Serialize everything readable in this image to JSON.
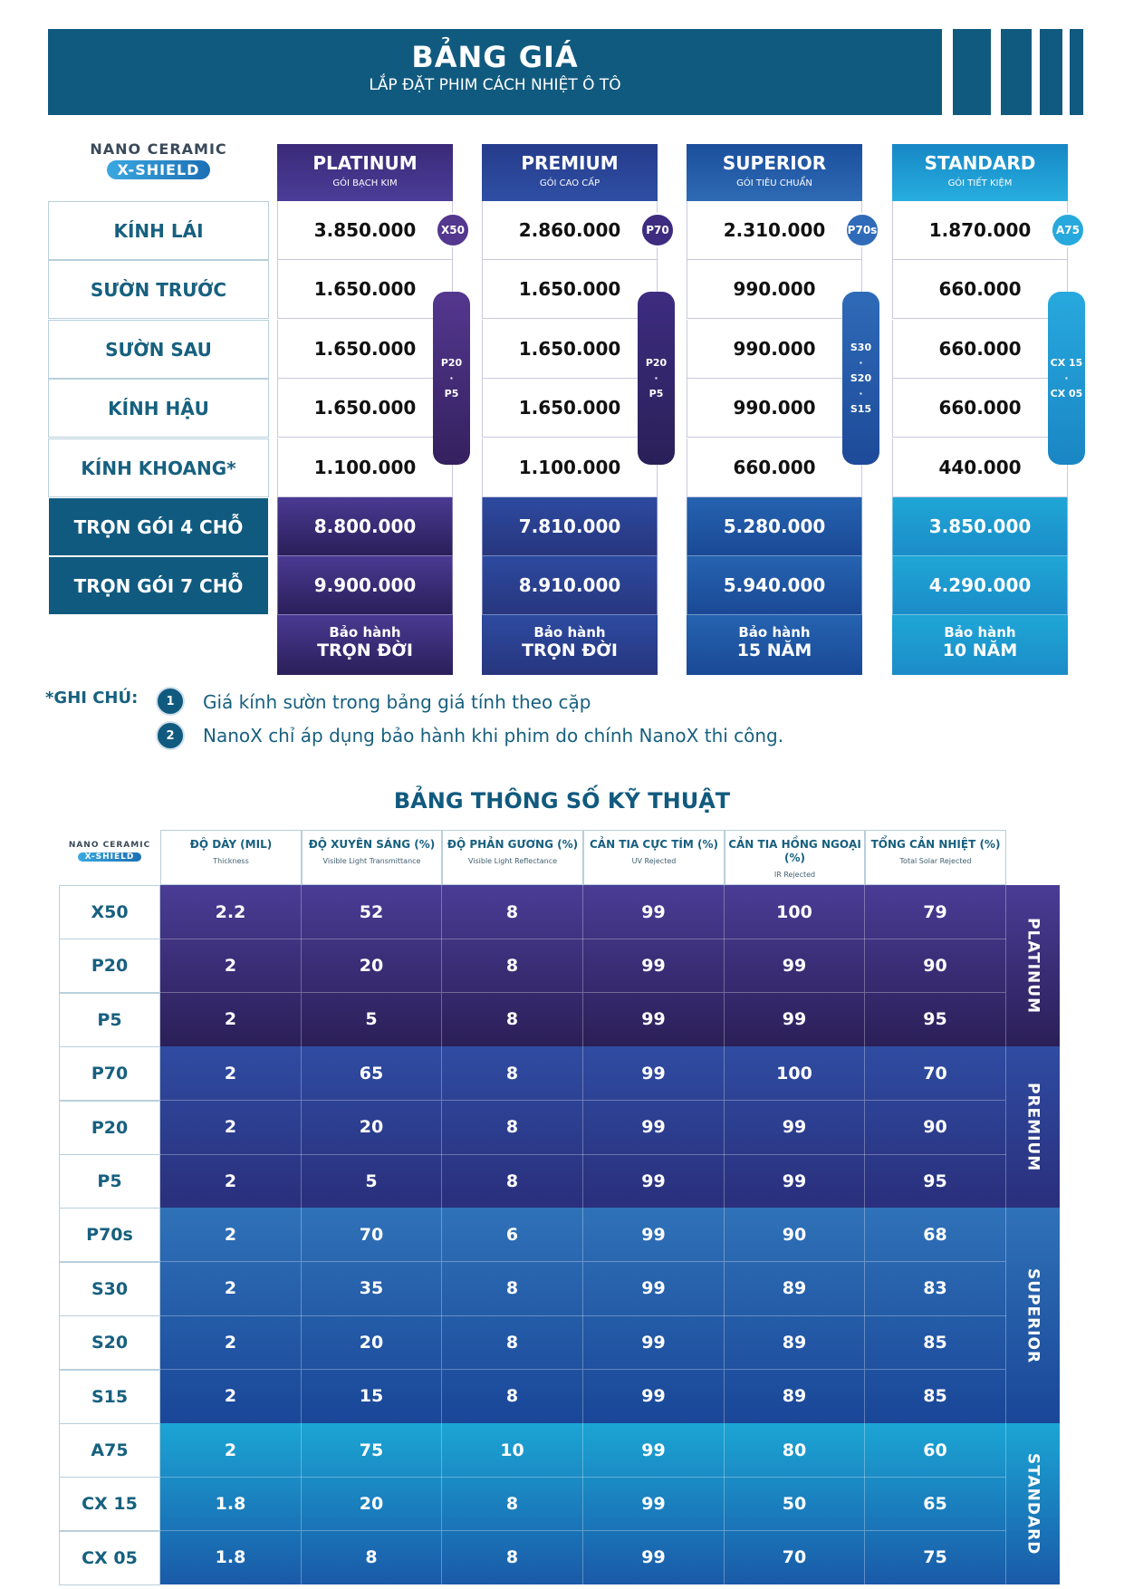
{
  "header": {
    "title": "BẢNG GIÁ",
    "subtitle": "LẮP ĐẶT PHIM CÁCH NHIỆT Ô TÔ"
  },
  "logo": {
    "line1": "NANO CERAMIC",
    "line2": "X-SHIELD"
  },
  "colors": {
    "platinum": "#3f2f86",
    "premium": "#2d4596",
    "superior": "#1f5ca9",
    "standard": "#1a9bd0",
    "brand": "#115a7f"
  },
  "price": {
    "rows": [
      "KÍNH LÁI",
      "SƯỜN TRƯỚC",
      "SƯỜN SAU",
      "KÍNH HẬU",
      "KÍNH KHOANG*",
      "TRỌN GÓI 4 CHỖ",
      "TRỌN GÓI 7 CHỖ"
    ],
    "packages": [
      {
        "name": "PLATINUM",
        "sub": "GÓI BẠCH KIM",
        "prices": [
          "3.850.000",
          "1.650.000",
          "1.650.000",
          "1.650.000",
          "1.100.000",
          "8.800.000",
          "9.900.000"
        ],
        "badge": "X50",
        "pill": [
          "P20",
          "·",
          "P5"
        ],
        "warranty_a": "Bảo hành",
        "warranty_b": "TRỌN ĐỜI"
      },
      {
        "name": "PREMIUM",
        "sub": "GÓI CAO CẤP",
        "prices": [
          "2.860.000",
          "1.650.000",
          "1.650.000",
          "1.650.000",
          "1.100.000",
          "7.810.000",
          "8.910.000"
        ],
        "badge": "P70",
        "pill": [
          "P20",
          "·",
          "P5"
        ],
        "warranty_a": "Bảo hành",
        "warranty_b": "TRỌN ĐỜI"
      },
      {
        "name": "SUPERIOR",
        "sub": "GÓI TIÊU CHUẨN",
        "prices": [
          "2.310.000",
          "990.000",
          "990.000",
          "990.000",
          "660.000",
          "5.280.000",
          "5.940.000"
        ],
        "badge": "P70s",
        "pill": [
          "S30",
          "·",
          "S20",
          "·",
          "S15"
        ],
        "warranty_a": "Bảo hành",
        "warranty_b": "15 NĂM"
      },
      {
        "name": "STANDARD",
        "sub": "GÓI TIẾT KIỆM",
        "prices": [
          "1.870.000",
          "660.000",
          "660.000",
          "660.000",
          "440.000",
          "3.850.000",
          "4.290.000"
        ],
        "badge": "A75",
        "pill": [
          "CX 15",
          "·",
          "CX 05"
        ],
        "warranty_a": "Bảo hành",
        "warranty_b": "10 NĂM"
      }
    ]
  },
  "notes": {
    "label": "*GHI CHÚ:",
    "items": [
      {
        "n": "1",
        "text": "Giá kính sườn trong bảng giá tính theo cặp"
      },
      {
        "n": "2",
        "text": "NanoX chỉ áp dụng bảo hành khi phim do chính NanoX thi công."
      }
    ]
  },
  "spec": {
    "title": "BẢNG THÔNG SỐ KỸ THUẬT",
    "columns": [
      {
        "vi": "ĐỘ DÀY (MIL)",
        "en": "Thickness"
      },
      {
        "vi": "ĐỘ XUYÊN SÁNG (%)",
        "en": "Visible Light Transmittance"
      },
      {
        "vi": "ĐỘ PHẢN GƯƠNG (%)",
        "en": "Visible Light Reflectance"
      },
      {
        "vi": "CẢN TIA CỰC TÍM (%)",
        "en": "UV Rejected"
      },
      {
        "vi": "CẢN TIA HỒNG NGOẠI (%)",
        "en": "IR Rejected"
      },
      {
        "vi": "TỔNG CẢN NHIỆT (%)",
        "en": "Total Solar Rejected"
      }
    ],
    "groups": [
      {
        "name": "PLATINUM",
        "rows": [
          [
            "X50",
            "2.2",
            "52",
            "8",
            "99",
            "100",
            "79"
          ],
          [
            "P20",
            "2",
            "20",
            "8",
            "99",
            "99",
            "90"
          ],
          [
            "P5",
            "2",
            "5",
            "8",
            "99",
            "99",
            "95"
          ]
        ]
      },
      {
        "name": "PREMIUM",
        "rows": [
          [
            "P70",
            "2",
            "65",
            "8",
            "99",
            "100",
            "70"
          ],
          [
            "P20",
            "2",
            "20",
            "8",
            "99",
            "99",
            "90"
          ],
          [
            "P5",
            "2",
            "5",
            "8",
            "99",
            "99",
            "95"
          ]
        ]
      },
      {
        "name": "SUPERIOR",
        "rows": [
          [
            "P70s",
            "2",
            "70",
            "6",
            "99",
            "90",
            "68"
          ],
          [
            "S30",
            "2",
            "35",
            "8",
            "99",
            "89",
            "83"
          ],
          [
            "S20",
            "2",
            "20",
            "8",
            "99",
            "89",
            "85"
          ],
          [
            "S15",
            "2",
            "15",
            "8",
            "99",
            "89",
            "85"
          ]
        ]
      },
      {
        "name": "STANDARD",
        "rows": [
          [
            "A75",
            "2",
            "75",
            "10",
            "99",
            "80",
            "60"
          ],
          [
            "CX 15",
            "1.8",
            "20",
            "8",
            "99",
            "50",
            "65"
          ],
          [
            "CX 05",
            "1.8",
            "8",
            "8",
            "99",
            "70",
            "75"
          ]
        ]
      }
    ]
  }
}
